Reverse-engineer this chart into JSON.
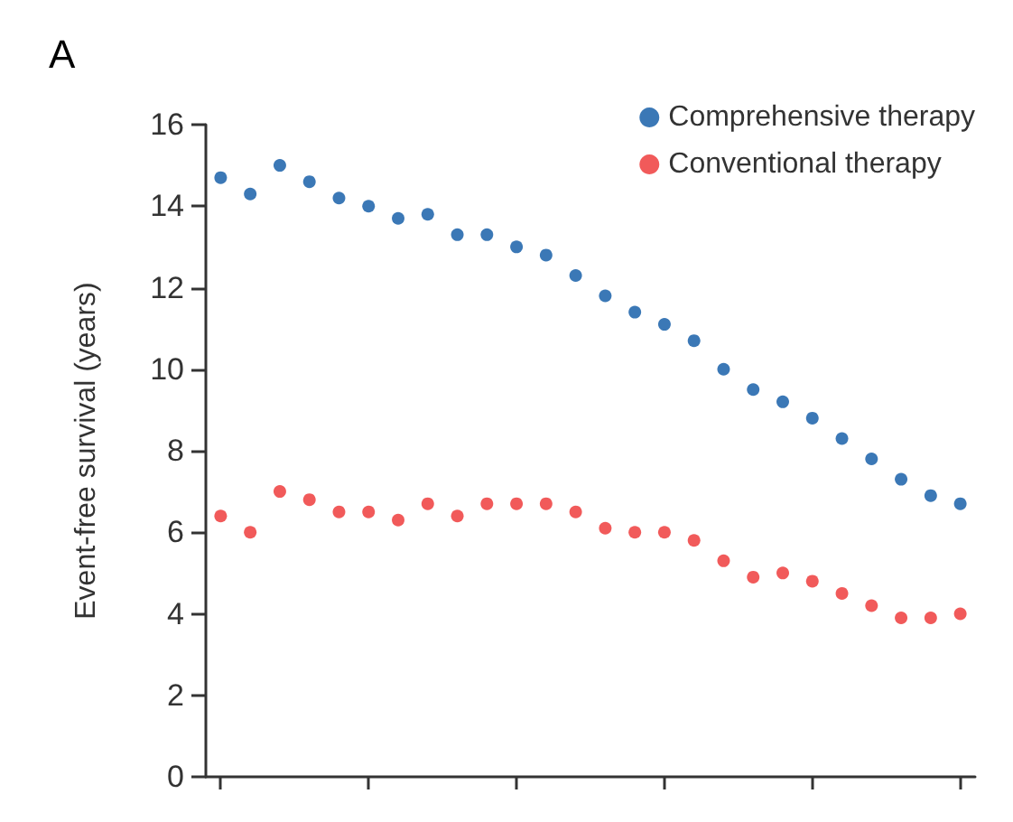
{
  "chart_data": {
    "type": "scatter",
    "title": "A",
    "ylabel": "Event-free survival (years)",
    "categories": [
      null,
      null,
      null,
      null,
      null,
      null,
      null,
      null,
      null,
      null,
      null,
      null,
      null,
      null,
      null,
      null,
      null,
      null,
      null,
      null,
      null,
      null,
      null,
      null,
      null,
      null
    ],
    "series": [
      {
        "name": "Comprehensive therapy",
        "color": "#0a56a4",
        "values": [
          14.7,
          14.3,
          15.0,
          14.6,
          14.2,
          14.0,
          13.7,
          13.8,
          13.3,
          13.3,
          13.0,
          12.8,
          12.3,
          11.8,
          11.4,
          11.1,
          10.7,
          10.0,
          9.5,
          9.2,
          8.8,
          8.3,
          7.8,
          7.3,
          6.9,
          6.7
        ]
      },
      {
        "name": "Conventional therapy",
        "color": "#ee3131",
        "values": [
          6.4,
          6.0,
          7.0,
          6.8,
          6.5,
          6.5,
          6.3,
          6.7,
          6.4,
          6.7,
          6.7,
          6.7,
          6.5,
          6.1,
          6.0,
          6.0,
          5.8,
          5.3,
          4.9,
          5.0,
          4.8,
          4.5,
          4.2,
          3.9,
          3.9,
          4.0
        ]
      }
    ],
    "ylim": [
      0,
      16
    ],
    "yticks": [
      0,
      2,
      4,
      6,
      8,
      10,
      12,
      14,
      16
    ],
    "tick_labels": "y",
    "grid": false,
    "legend": "top right",
    "marker": "circle"
  }
}
